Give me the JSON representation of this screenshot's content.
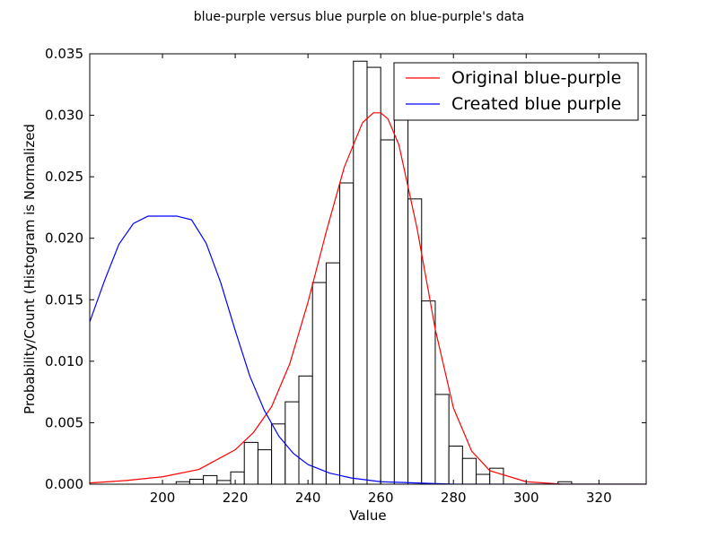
{
  "chart_data": {
    "type": "bar",
    "title": "blue-purple versus blue purple on blue-purple's data",
    "xlabel": "Value",
    "ylabel": "Probability/Count (Histogram is Normalized",
    "xlim": [
      180,
      333
    ],
    "ylim": [
      0,
      0.035
    ],
    "xticks": [
      "200",
      "220",
      "240",
      "260",
      "280",
      "300",
      "320"
    ],
    "yticks": [
      "0.000",
      "0.005",
      "0.010",
      "0.015",
      "0.020",
      "0.025",
      "0.030",
      "0.035"
    ],
    "grid": false,
    "legend_position": "top-right",
    "histogram": {
      "bin_width": 3.75,
      "bin_starts": [
        200.0,
        203.75,
        207.5,
        211.25,
        215.0,
        218.75,
        222.5,
        226.25,
        230.0,
        233.75,
        237.5,
        241.25,
        245.0,
        248.75,
        252.5,
        256.25,
        260.0,
        263.75,
        267.5,
        271.25,
        275.0,
        278.75,
        282.5,
        286.25,
        290.0,
        293.75,
        297.5,
        301.25,
        305.0,
        308.75
      ],
      "values": [
        0.0,
        0.0002,
        0.0004,
        0.0007,
        0.0003,
        0.001,
        0.0034,
        0.0028,
        0.0049,
        0.0067,
        0.0088,
        0.0164,
        0.018,
        0.0245,
        0.0344,
        0.0339,
        0.028,
        0.0331,
        0.0232,
        0.0149,
        0.0073,
        0.0031,
        0.0021,
        0.0008,
        0.0013,
        0.0,
        0.0,
        0.0,
        0.0,
        0.0002
      ]
    },
    "series": [
      {
        "name": "Original blue-purple",
        "color": "#ff0000",
        "x": [
          180,
          190,
          200,
          210,
          220,
          225,
          230,
          235,
          240,
          245,
          250,
          255,
          258,
          260,
          262,
          265,
          270,
          275,
          280,
          285,
          290,
          300,
          310,
          320,
          333
        ],
        "y": [
          0.0001,
          0.0003,
          0.0006,
          0.0012,
          0.0028,
          0.0042,
          0.0063,
          0.0098,
          0.0148,
          0.0205,
          0.0258,
          0.0294,
          0.0302,
          0.0302,
          0.0297,
          0.0276,
          0.0208,
          0.0126,
          0.0062,
          0.0027,
          0.0011,
          0.0002,
          0.0,
          0.0,
          0.0
        ]
      },
      {
        "name": "Created blue purple",
        "color": "#0000ff",
        "x": [
          180,
          184,
          188,
          192,
          196,
          200,
          204,
          208,
          212,
          216,
          220,
          224,
          228,
          232,
          236,
          240,
          246,
          252,
          260,
          270,
          280,
          300,
          333
        ],
        "y": [
          0.0132,
          0.0165,
          0.0195,
          0.0212,
          0.0218,
          0.0218,
          0.0218,
          0.0215,
          0.0196,
          0.0164,
          0.0125,
          0.0088,
          0.006,
          0.0039,
          0.0025,
          0.0016,
          0.0009,
          0.0005,
          0.0002,
          0.0001,
          0.0,
          0.0,
          0.0
        ]
      }
    ]
  }
}
